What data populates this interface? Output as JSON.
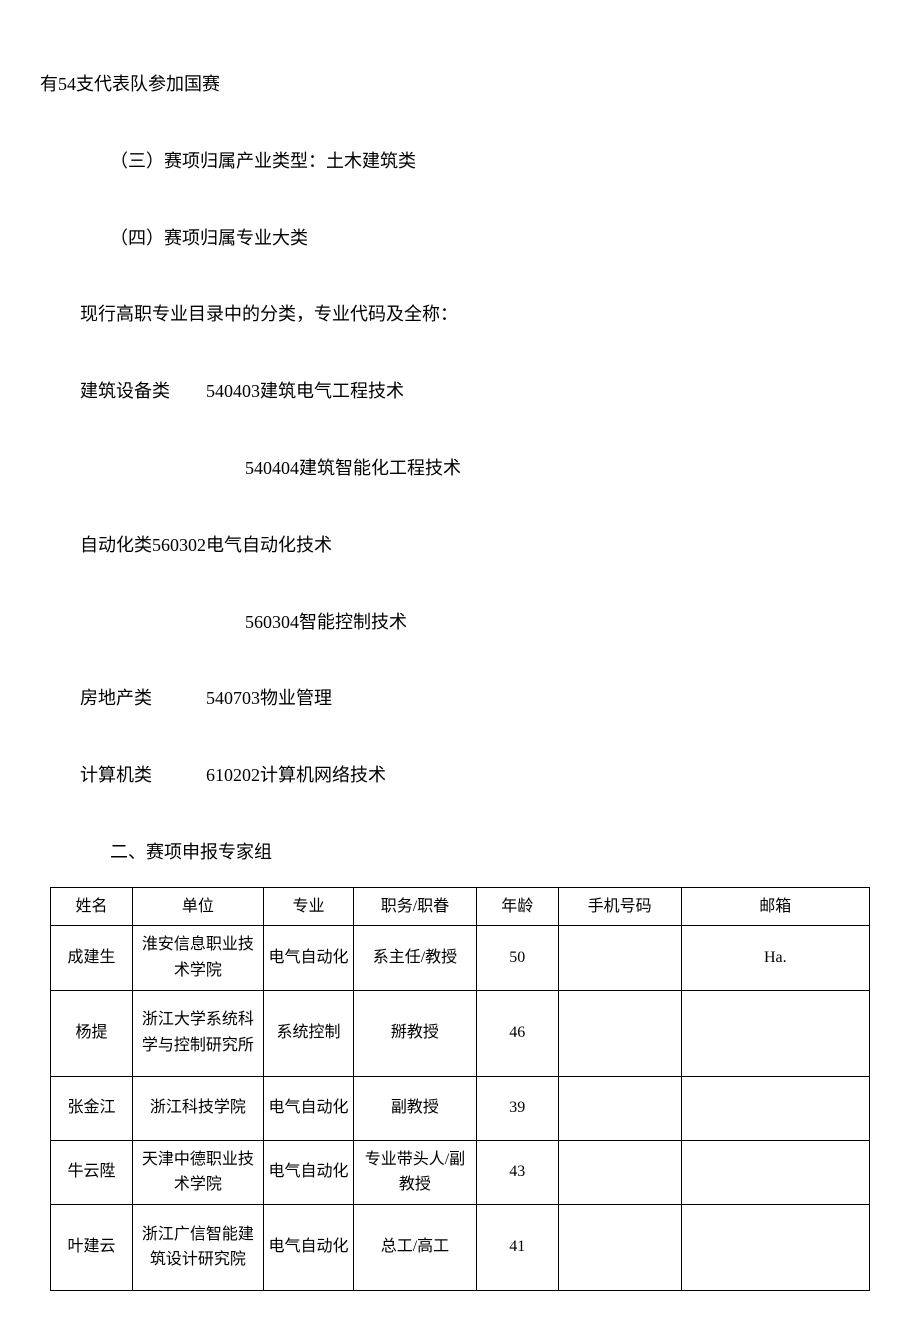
{
  "intro": "有54支代表队参加国赛",
  "section3": "（三）赛项归属产业类型：土木建筑类",
  "section4": "（四）赛项归属专业大类",
  "classification_intro": "现行高职专业目录中的分类，专业代码及全称：",
  "category1": "建筑设备类  540403建筑电气工程技术",
  "category1_sub": "540404建筑智能化工程技术",
  "category2": "自动化类560302电气自动化技术",
  "category2_sub": "560304智能控制技术",
  "category3": "房地产类   540703物业管理",
  "category4": "计算机类   610202计算机网络技术",
  "section2_header": "二、赛项申报专家组",
  "table": {
    "headers": {
      "name": "姓名",
      "unit": "单位",
      "major": "专业",
      "title": "职务/职眷",
      "age": "年龄",
      "phone": "手机号码",
      "email": "邮箱"
    },
    "rows": [
      {
        "name": "成建生",
        "unit": "淮安信息职业技术学院",
        "major": "电气自动化",
        "title": "系主任/教授",
        "age": "50",
        "phone": "",
        "email": "Ha."
      },
      {
        "name": "杨提",
        "unit": "浙江大学系统科学与控制研究所",
        "major": "系统控制",
        "title": "掰教授",
        "age": "46",
        "phone": "",
        "email": ""
      },
      {
        "name": "张金江",
        "unit": "浙江科技学院",
        "major": "电气自动化",
        "title": "副教授",
        "age": "39",
        "phone": "",
        "email": ""
      },
      {
        "name": "牛云陞",
        "unit": "天津中德职业技术学院",
        "major": "电气自动化",
        "title": "专业带头人/副教授",
        "age": "43",
        "phone": "",
        "email": ""
      },
      {
        "name": "叶建云",
        "unit": "浙江广信智能建筑设计研究院",
        "major": "电气自动化",
        "title": "总工/高工",
        "age": "41",
        "phone": "",
        "email": ""
      }
    ]
  }
}
